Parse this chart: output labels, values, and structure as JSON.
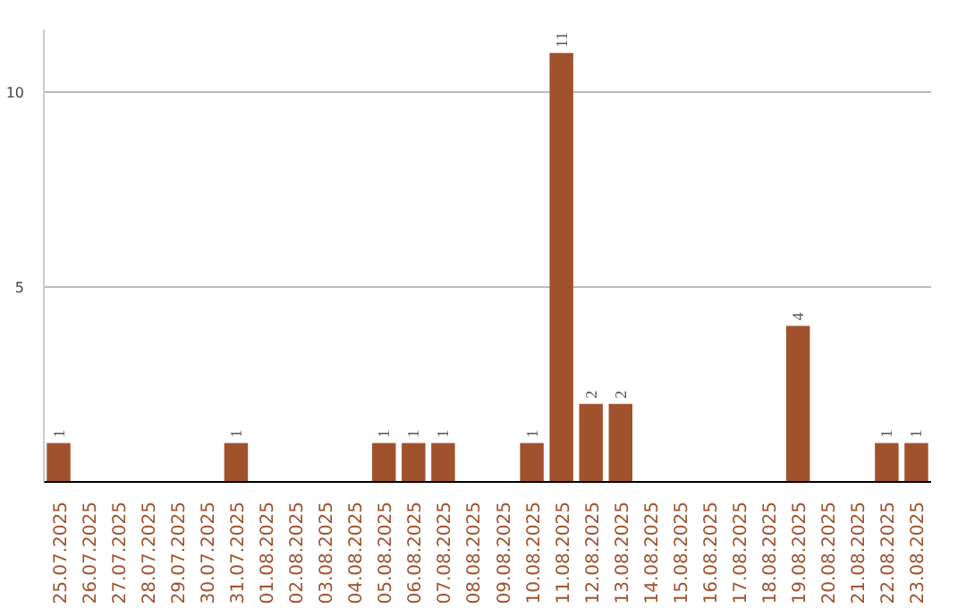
{
  "chart_data": {
    "type": "bar",
    "categories": [
      "25.07.2025",
      "26.07.2025",
      "27.07.2025",
      "28.07.2025",
      "29.07.2025",
      "30.07.2025",
      "31.07.2025",
      "01.08.2025",
      "02.08.2025",
      "03.08.2025",
      "04.08.2025",
      "05.08.2025",
      "06.08.2025",
      "07.08.2025",
      "08.08.2025",
      "09.08.2025",
      "10.08.2025",
      "11.08.2025",
      "12.08.2025",
      "13.08.2025",
      "14.08.2025",
      "15.08.2025",
      "16.08.2025",
      "17.08.2025",
      "18.08.2025",
      "19.08.2025",
      "20.08.2025",
      "21.08.2025",
      "22.08.2025",
      "23.08.2025"
    ],
    "values": [
      1,
      0,
      0,
      0,
      0,
      0,
      1,
      0,
      0,
      0,
      0,
      1,
      1,
      1,
      0,
      0,
      1,
      11,
      2,
      2,
      0,
      0,
      0,
      0,
      0,
      4,
      0,
      0,
      1,
      1
    ],
    "value_labels": [
      "1",
      null,
      null,
      null,
      null,
      null,
      "1",
      null,
      null,
      null,
      null,
      "1",
      "1",
      "1",
      null,
      null,
      "1",
      "11",
      "2",
      "2",
      null,
      null,
      null,
      null,
      null,
      "4",
      null,
      null,
      "1",
      "1"
    ],
    "color": "#a0522d",
    "ylim": [
      0,
      11.6
    ],
    "yticks": [
      5,
      10
    ],
    "grid": "y"
  }
}
